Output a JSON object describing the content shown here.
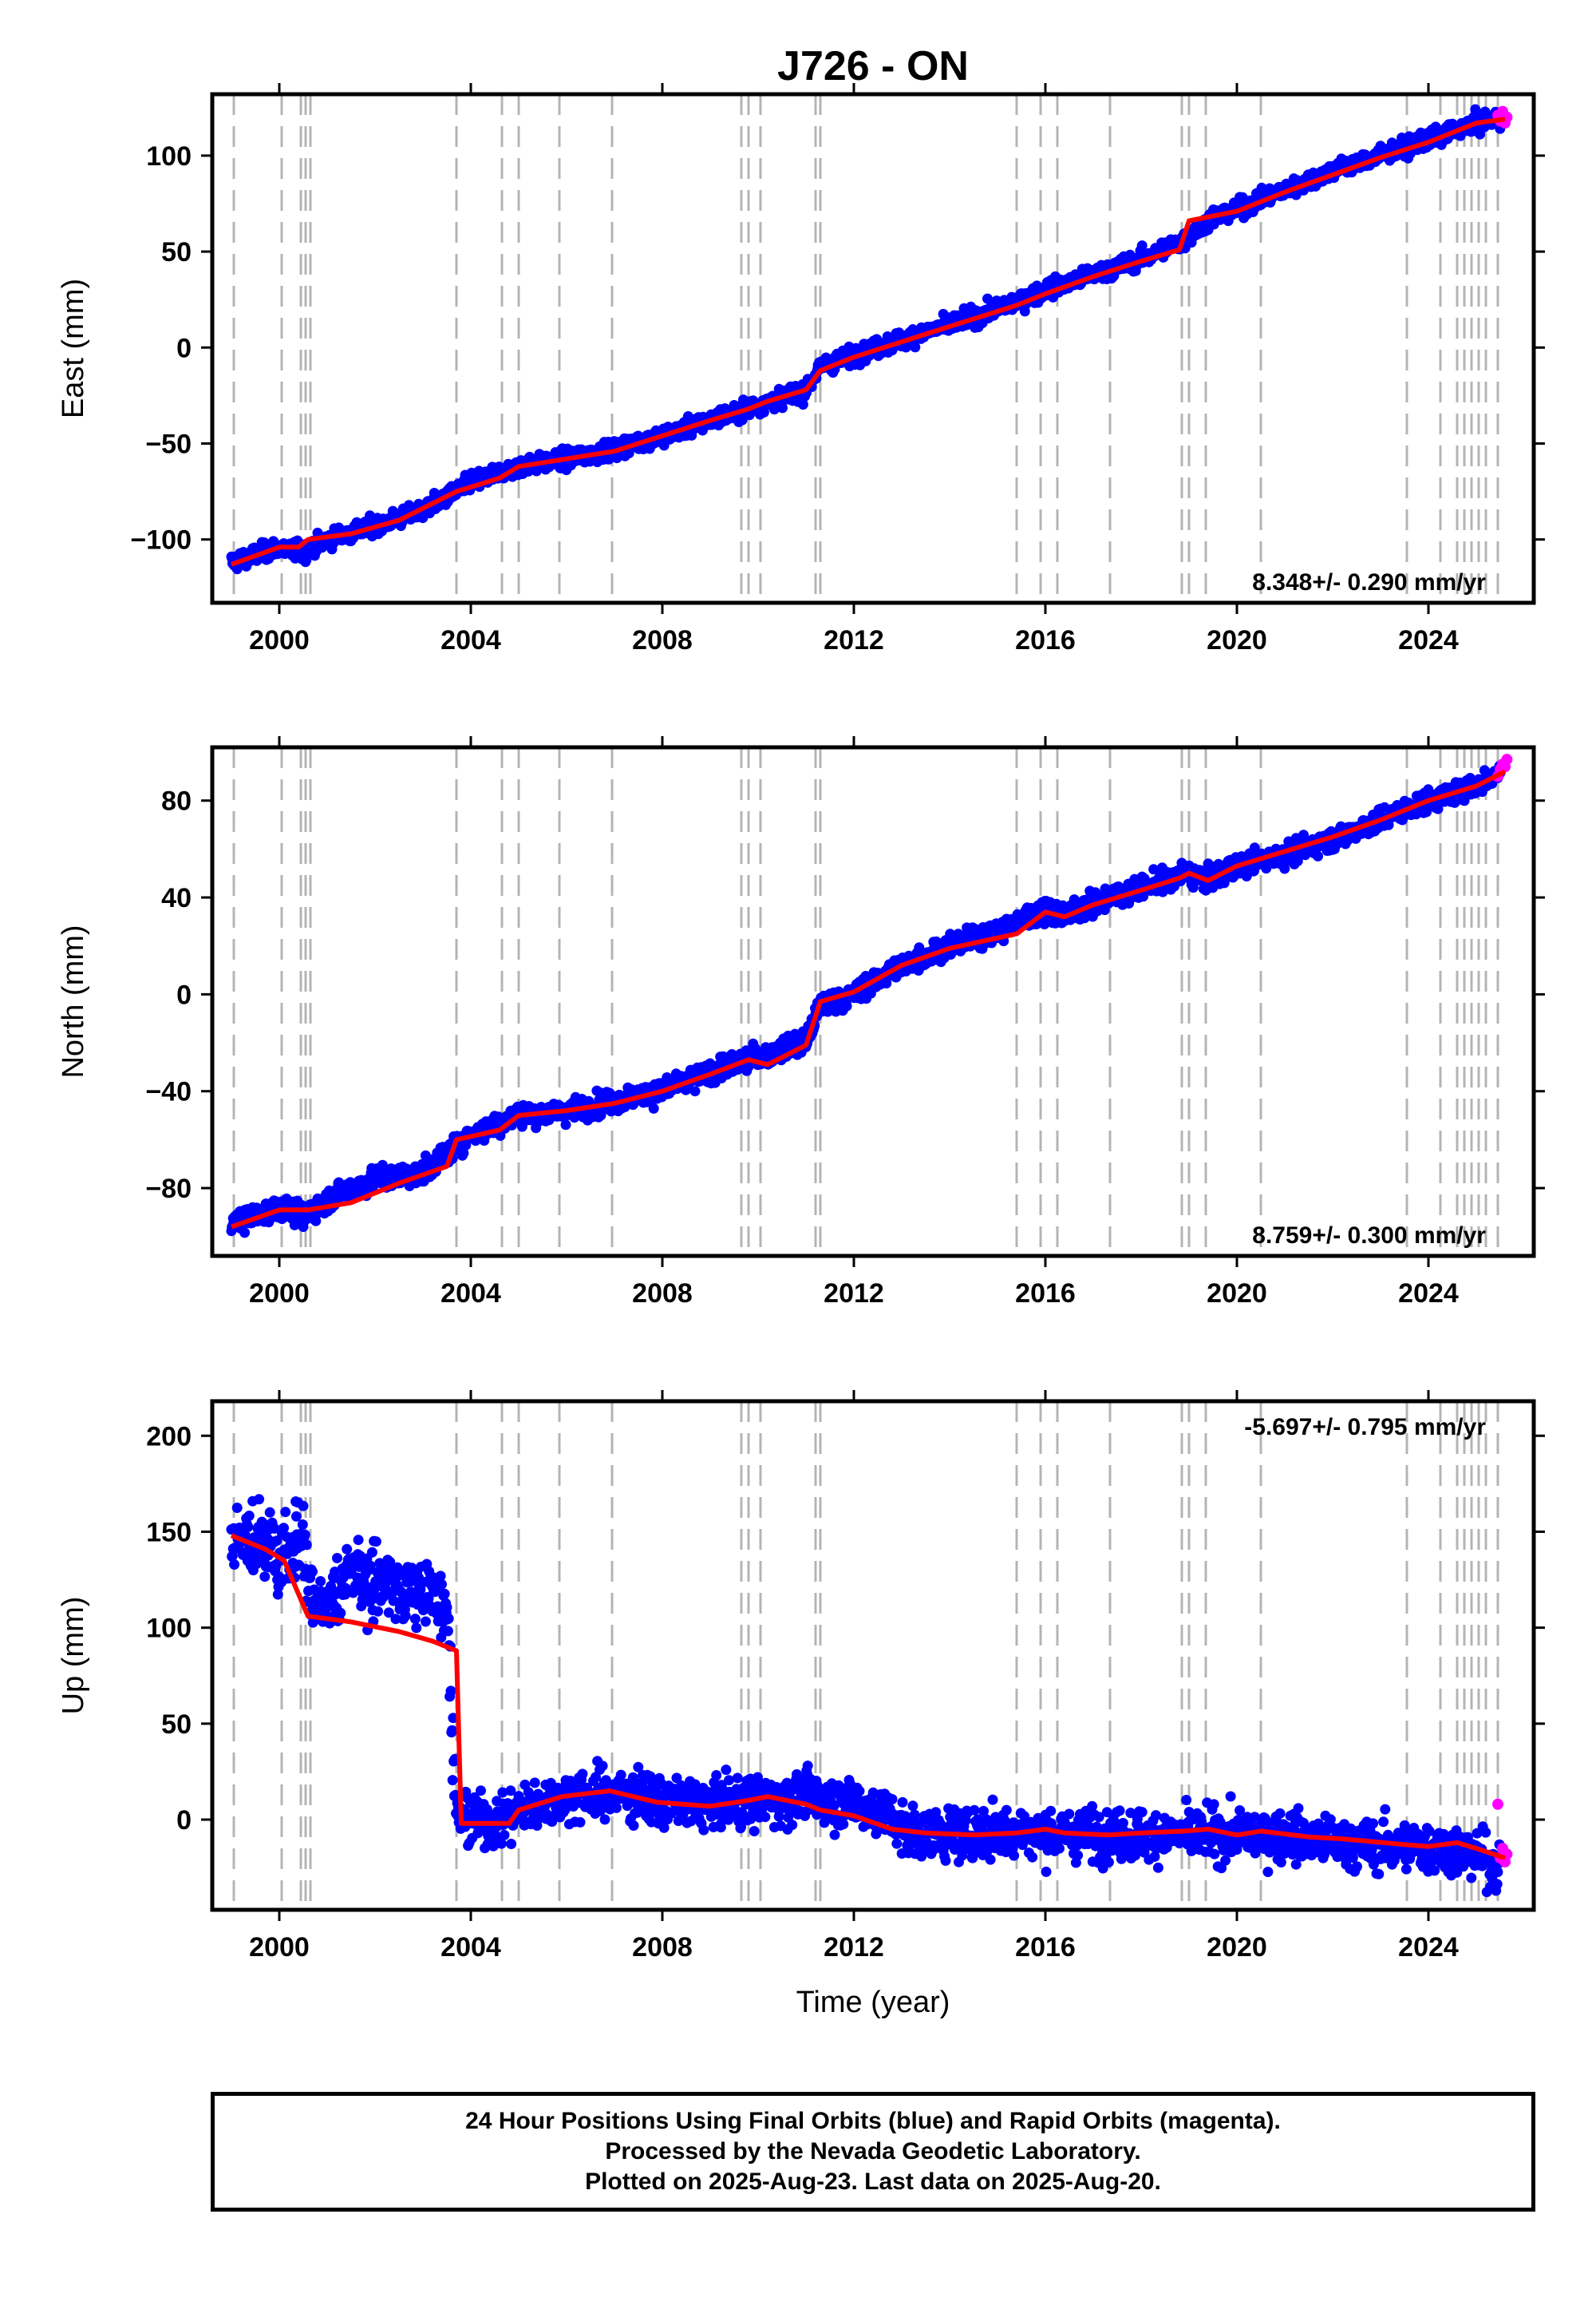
{
  "chart_data": [
    {
      "type": "scatter",
      "title": "J726 - ON",
      "ylabel": "East (mm)",
      "xlabel": "",
      "xlim": [
        1998.6,
        2026.2
      ],
      "ylim": [
        -133,
        132
      ],
      "xticks": [
        2000,
        2004,
        2008,
        2012,
        2016,
        2020,
        2024
      ],
      "yticks": [
        -100,
        -50,
        0,
        50,
        100
      ],
      "rate_label": "8.348+/- 0.290 mm/yr",
      "rate_position": "bottom-right",
      "grid": false,
      "series": [
        {
          "color": "#0000ff",
          "x": [
            1999.0,
            2000.0,
            2000.5,
            2001.0,
            2002.0,
            2003.0,
            2003.7,
            2004.0,
            2005.0,
            2006.0,
            2007.0,
            2008.0,
            2009.0,
            2010.0,
            2011.0,
            2011.3,
            2012.0,
            2013.0,
            2014.0,
            2015.0,
            2016.0,
            2017.0,
            2018.0,
            2018.9,
            2019.5,
            2020.0,
            2021.0,
            2022.0,
            2023.0,
            2024.0,
            2025.0,
            2025.5
          ],
          "y": [
            -112,
            -104,
            -107,
            -100,
            -93,
            -85,
            -75,
            -70,
            -62,
            -58,
            -53,
            -46,
            -38,
            -30,
            -22,
            -10,
            -4,
            4,
            12,
            20,
            30,
            38,
            46,
            56,
            68,
            72,
            82,
            92,
            100,
            108,
            117,
            120
          ]
        },
        {
          "color": "#ff00ff",
          "x": [
            2025.45,
            2025.5,
            2025.55,
            2025.6,
            2025.64
          ],
          "y": [
            121,
            118,
            123,
            117,
            120
          ]
        }
      ],
      "model": {
        "color": "#ff0000",
        "x": [
          1999.0,
          2000.0,
          2000.4,
          2000.6,
          2001.5,
          2002.5,
          2003.7,
          2004.6,
          2005.0,
          2006.0,
          2007.0,
          2008.0,
          2009.0,
          2009.8,
          2010.2,
          2011.0,
          2011.3,
          2012.0,
          2013.0,
          2014.0,
          2015.4,
          2016.0,
          2017.0,
          2018.0,
          2018.8,
          2019.0,
          2020.0,
          2021.0,
          2022.0,
          2023.0,
          2024.0,
          2025.0,
          2025.6
        ],
        "y": [
          -113,
          -104,
          -104,
          -100,
          -97,
          -90,
          -75,
          -68,
          -62,
          -58,
          -54,
          -46,
          -38,
          -32,
          -28,
          -22,
          -12,
          -5,
          3,
          11,
          22,
          28,
          37,
          45,
          51,
          66,
          71,
          81,
          90,
          99,
          107,
          117,
          119
        ]
      }
    },
    {
      "type": "scatter",
      "title": "",
      "ylabel": "North (mm)",
      "xlabel": "",
      "xlim": [
        1998.6,
        2026.2
      ],
      "ylim": [
        -108,
        102
      ],
      "xticks": [
        2000,
        2004,
        2008,
        2012,
        2016,
        2020,
        2024
      ],
      "yticks": [
        -80,
        -40,
        0,
        40,
        80
      ],
      "rate_label": "8.759+/- 0.300 mm/yr",
      "rate_position": "bottom-right",
      "grid": false,
      "series": [
        {
          "color": "#0000ff",
          "x": [
            1999.0,
            2000.0,
            2000.5,
            2001.0,
            2002.0,
            2003.0,
            2003.7,
            2004.0,
            2005.0,
            2006.0,
            2007.0,
            2008.0,
            2009.0,
            2010.0,
            2011.0,
            2011.3,
            2012.0,
            2013.0,
            2014.0,
            2015.0,
            2016.0,
            2016.5,
            2017.0,
            2018.0,
            2019.0,
            2019.3,
            2020.0,
            2021.0,
            2022.0,
            2023.0,
            2024.0,
            2025.0,
            2025.5
          ],
          "y": [
            -95,
            -88,
            -92,
            -85,
            -76,
            -74,
            -62,
            -58,
            -50,
            -48,
            -44,
            -40,
            -32,
            -26,
            -20,
            -4,
            0,
            12,
            20,
            26,
            35,
            33,
            38,
            44,
            50,
            47,
            53,
            58,
            64,
            72,
            80,
            86,
            92
          ]
        },
        {
          "color": "#ff00ff",
          "x": [
            2025.45,
            2025.5,
            2025.55,
            2025.6,
            2025.64
          ],
          "y": [
            90,
            93,
            95,
            94,
            97
          ]
        }
      ],
      "model": {
        "color": "#ff0000",
        "x": [
          1999.0,
          2000.0,
          2000.6,
          2001.5,
          2002.5,
          2003.5,
          2003.7,
          2004.6,
          2005.0,
          2006.0,
          2007.0,
          2008.0,
          2009.0,
          2009.8,
          2010.2,
          2011.0,
          2011.3,
          2012.0,
          2013.0,
          2014.0,
          2015.4,
          2016.0,
          2016.4,
          2017.0,
          2018.0,
          2018.8,
          2019.0,
          2019.4,
          2020.0,
          2021.0,
          2022.0,
          2023.0,
          2024.0,
          2025.0,
          2025.6
        ],
        "y": [
          -96,
          -89,
          -89,
          -86,
          -78,
          -71,
          -60,
          -56,
          -50,
          -48,
          -45,
          -40,
          -33,
          -27,
          -29,
          -21,
          -3,
          1,
          12,
          19,
          25,
          34,
          32,
          37,
          43,
          48,
          50,
          47,
          53,
          59,
          65,
          72,
          80,
          86,
          92
        ]
      }
    },
    {
      "type": "scatter",
      "title": "",
      "ylabel": "Up (mm)",
      "xlabel": "Time (year)",
      "xlim": [
        1998.6,
        2026.2
      ],
      "ylim": [
        -47,
        218
      ],
      "xticks": [
        2000,
        2004,
        2008,
        2012,
        2016,
        2020,
        2024
      ],
      "yticks": [
        0,
        50,
        100,
        150,
        200
      ],
      "rate_label": "-5.697+/- 0.795 mm/yr",
      "rate_position": "top-right",
      "grid": false,
      "series": [
        {
          "color": "#0000ff",
          "x": [
            1999.0,
            1999.5,
            2000.0,
            2000.5,
            2000.7,
            2001.0,
            2001.5,
            2002.0,
            2002.5,
            2003.0,
            2003.5,
            2003.7,
            2003.9,
            2004.5,
            2005.0,
            2006.0,
            2007.0,
            2008.0,
            2009.0,
            2010.0,
            2011.0,
            2012.0,
            2012.7,
            2013.0,
            2014.0,
            2015.0,
            2016.0,
            2017.0,
            2018.0,
            2019.0,
            2020.0,
            2021.0,
            2022.0,
            2023.0,
            2024.0,
            2025.0,
            2025.5
          ],
          "y": [
            150,
            145,
            140,
            148,
            110,
            108,
            130,
            125,
            120,
            118,
            115,
            0,
            2,
            -2,
            5,
            12,
            14,
            10,
            8,
            10,
            12,
            8,
            3,
            -5,
            -8,
            -6,
            -7,
            -8,
            -8,
            -8,
            -8,
            -8,
            -12,
            -14,
            -14,
            -18,
            -25
          ]
        },
        {
          "color": "#ff00ff",
          "x": [
            2025.45,
            2025.5,
            2025.55,
            2025.6,
            2025.64
          ],
          "y": [
            8,
            -20,
            -15,
            -22,
            -18
          ]
        }
      ],
      "model": {
        "color": "#ff0000",
        "x": [
          1999.0,
          1999.7,
          2000.1,
          2000.6,
          2001.5,
          2002.5,
          2003.2,
          2003.7,
          2003.8,
          2004.8,
          2005.0,
          2005.9,
          2006.9,
          2007.9,
          2009.0,
          2009.8,
          2010.2,
          2011.0,
          2011.3,
          2012.0,
          2012.8,
          2013.5,
          2014.5,
          2015.4,
          2016.0,
          2016.4,
          2017.3,
          2018.0,
          2018.9,
          2019.4,
          2020.0,
          2020.5,
          2021.5,
          2022.2,
          2023.5,
          2024.0,
          2024.6,
          2025.0,
          2025.6
        ],
        "y": [
          148,
          141,
          135,
          106,
          103,
          98,
          93,
          88,
          -2,
          -2,
          5,
          12,
          15,
          9,
          7,
          10,
          12,
          8,
          5,
          2,
          -5,
          -7,
          -8,
          -7,
          -5,
          -7,
          -8,
          -7,
          -6,
          -5,
          -8,
          -6,
          -9,
          -10,
          -13,
          -14,
          -12,
          -15,
          -20
        ]
      }
    }
  ],
  "event_lines": [
    1999.05,
    2000.05,
    2000.45,
    2000.55,
    2000.65,
    2003.7,
    2004.65,
    2005.0,
    2005.85,
    2006.95,
    2009.65,
    2009.8,
    2010.05,
    2011.2,
    2011.3,
    2015.4,
    2015.9,
    2016.25,
    2017.35,
    2018.85,
    2019.0,
    2019.35,
    2020.5,
    2023.55,
    2024.25,
    2024.6,
    2024.75,
    2024.9,
    2025.05,
    2025.2,
    2025.45
  ],
  "footer": {
    "line1": "24 Hour Positions Using Final Orbits (blue) and Rapid Orbits (magenta).",
    "line2": "Processed by the Nevada Geodetic Laboratory.",
    "line3": "Plotted on 2025-Aug-23. Last data on 2025-Aug-20."
  }
}
